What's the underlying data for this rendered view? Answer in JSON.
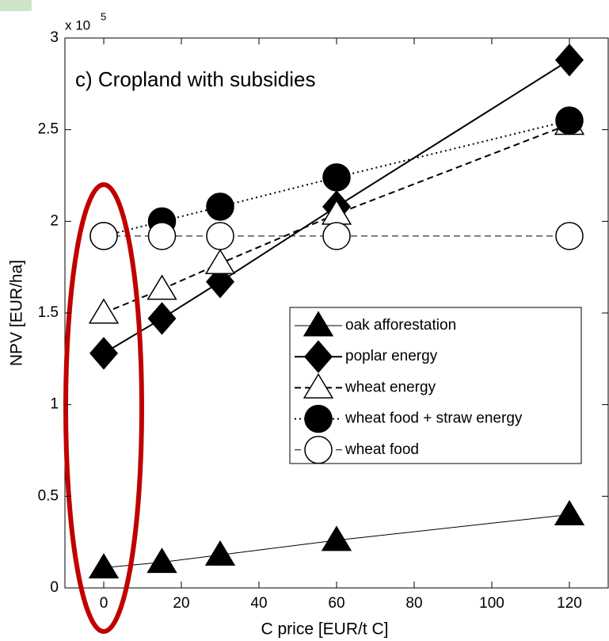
{
  "chart_data": {
    "type": "line",
    "title": "c) Cropland with subsidies",
    "xlabel": "C price [EUR/t C]",
    "ylabel": "NPV [EUR/ha]",
    "y_multiplier": {
      "base": "x 10",
      "power": "5"
    },
    "x": [
      0,
      15,
      30,
      60,
      120
    ],
    "xlim": [
      -10,
      130
    ],
    "xticks": [
      0,
      20,
      40,
      60,
      80,
      100,
      120
    ],
    "ylim": [
      0,
      3
    ],
    "yticks": [
      0,
      0.5,
      1,
      1.5,
      2,
      2.5,
      3
    ],
    "legend_position": "right",
    "series": [
      {
        "name": "oak afforestation",
        "color": "#000000",
        "marker": "^",
        "marker_fill": "#000000",
        "linestyle": "-",
        "linewidth": 1,
        "values": [
          0.11,
          0.14,
          0.18,
          0.26,
          0.4
        ]
      },
      {
        "name": "poplar energy",
        "color": "#000000",
        "marker": "d",
        "marker_fill": "#000000",
        "linestyle": "-",
        "linewidth": 2,
        "values": [
          1.28,
          1.47,
          1.67,
          2.08,
          2.88
        ]
      },
      {
        "name": "wheat energy",
        "color": "#000000",
        "marker": "^",
        "marker_fill": "#ffffff",
        "linestyle": "--",
        "linewidth": 2,
        "values": [
          1.5,
          1.63,
          1.77,
          2.04,
          2.53
        ]
      },
      {
        "name": "wheat food + straw energy",
        "color": "#000000",
        "marker": "o",
        "marker_fill": "#000000",
        "linestyle": ":",
        "linewidth": 2,
        "values": [
          1.92,
          2.0,
          2.08,
          2.24,
          2.55
        ]
      },
      {
        "name": "wheat food",
        "color": "#000000",
        "marker": "o",
        "marker_fill": "#ffffff",
        "linestyle": "--",
        "linewidth": 1,
        "values": [
          1.92,
          1.92,
          1.92,
          1.92,
          1.92
        ]
      }
    ]
  }
}
